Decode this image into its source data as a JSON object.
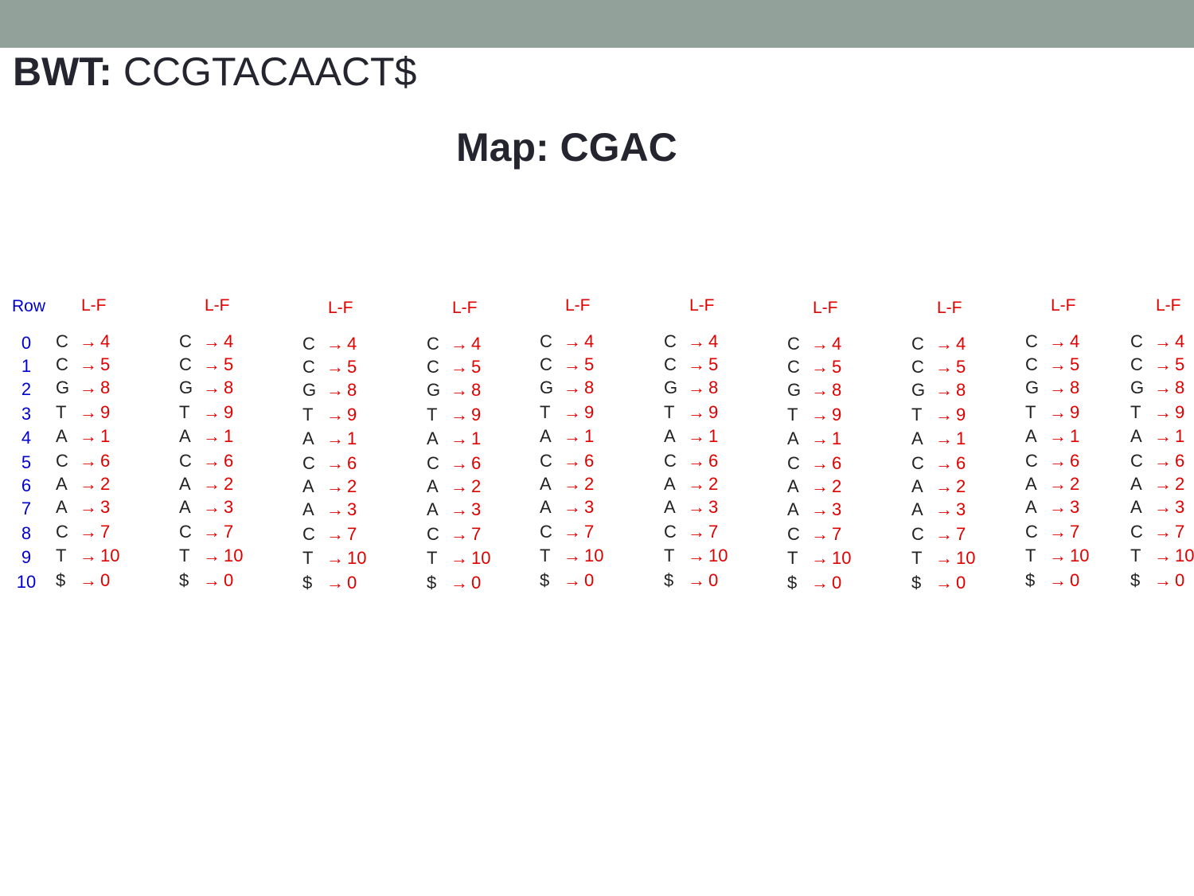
{
  "header_bar": {
    "color": "#92a29a"
  },
  "bwt": {
    "label": "BWT:",
    "value": " CCGTACAACT$"
  },
  "map_title": "Map: CGAC",
  "table": {
    "row_header": "Row",
    "lf_header": "L-F",
    "arrow_glyph": "→",
    "rows": [
      {
        "index": "0",
        "symbol": "C",
        "target": "4"
      },
      {
        "index": "1",
        "symbol": "C",
        "target": "5"
      },
      {
        "index": "2",
        "symbol": "G",
        "target": "8"
      },
      {
        "index": "3",
        "symbol": "T",
        "target": "9"
      },
      {
        "index": "4",
        "symbol": "A",
        "target": "1"
      },
      {
        "index": "5",
        "symbol": "C",
        "target": "6"
      },
      {
        "index": "6",
        "symbol": "A",
        "target": "2"
      },
      {
        "index": "7",
        "symbol": "A",
        "target": "3"
      },
      {
        "index": "8",
        "symbol": "C",
        "target": "7"
      },
      {
        "index": "9",
        "symbol": "T",
        "target": "10"
      },
      {
        "index": "10",
        "symbol": "$",
        "target": "0"
      }
    ],
    "column_count": 10
  },
  "colors": {
    "index": "#0000cc",
    "mapping": "#e00000",
    "symbol": "#222222"
  }
}
